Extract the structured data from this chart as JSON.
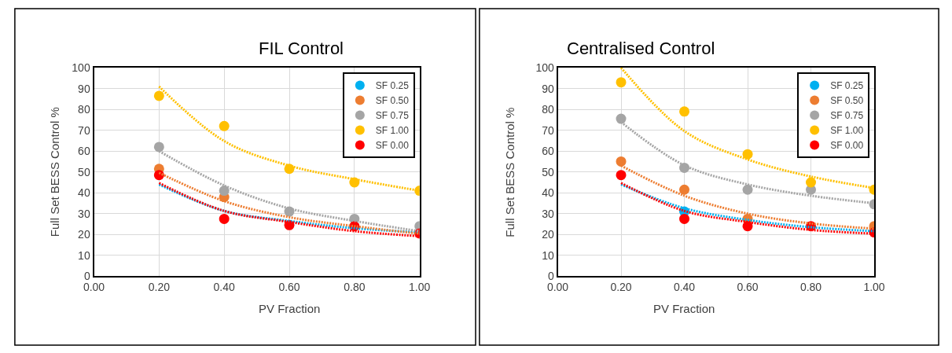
{
  "chart_data": [
    {
      "type": "scatter",
      "title": "FIL Control",
      "xlabel": "PV Fraction",
      "ylabel": "Full Set BESS Control %",
      "x": [
        0.2,
        0.4,
        0.6,
        0.8,
        1.0
      ],
      "xlim": [
        0,
        1
      ],
      "xticks": [
        {
          "value": 0,
          "label": "0.00"
        },
        {
          "value": 0.2,
          "label": "0.20"
        },
        {
          "value": 0.4,
          "label": "0.40"
        },
        {
          "value": 0.6,
          "label": "0.60"
        },
        {
          "value": 0.8,
          "label": "0.80"
        },
        {
          "value": 1,
          "label": "1.00"
        }
      ],
      "ylim": [
        0,
        100
      ],
      "yticks": [
        0,
        10,
        20,
        30,
        40,
        50,
        60,
        70,
        80,
        90,
        100
      ],
      "grid": true,
      "legend": "top right",
      "marker": "circle",
      "series": [
        {
          "name": "SF 0.25",
          "color": "#00b0f0",
          "values": [
            null,
            null,
            null,
            null,
            null
          ]
        },
        {
          "name": "SF 0.50",
          "color": "#ed7d31",
          "values": [
            51.5,
            38,
            null,
            null,
            null
          ]
        },
        {
          "name": "SF 0.75",
          "color": "#a5a5a5",
          "values": [
            62,
            41,
            31,
            27.5,
            24
          ]
        },
        {
          "name": "SF 1.00",
          "color": "#ffc000",
          "values": [
            86.5,
            72,
            51.5,
            45,
            41
          ]
        },
        {
          "name": "SF 0.00",
          "color": "#ff0000",
          "values": [
            48.5,
            27.5,
            24.5,
            24,
            20.5
          ]
        },
        {
          "type": "line",
          "color": "#00b0f0",
          "line_style": "dotted",
          "marker": "none",
          "values": [
            44,
            31.3,
            26.5,
            23,
            21
          ]
        },
        {
          "type": "line",
          "color": "#ed7d31",
          "line_style": "dotted",
          "marker": "none",
          "values": [
            49.6,
            36,
            28.3,
            24,
            20.4
          ]
        },
        {
          "type": "line",
          "color": "#a5a5a5",
          "line_style": "dotted",
          "marker": "none",
          "values": [
            60,
            43.5,
            32.5,
            26.5,
            21.6
          ]
        },
        {
          "type": "line",
          "color": "#ffc000",
          "line_style": "dotted",
          "marker": "none",
          "values": [
            91,
            64.8,
            53,
            46.5,
            41
          ]
        },
        {
          "type": "line",
          "color": "#ff0000",
          "line_style": "dotted",
          "marker": "none",
          "values": [
            44.7,
            31.3,
            26,
            21.6,
            19.2
          ]
        }
      ]
    },
    {
      "type": "scatter",
      "title": "Centralised Control",
      "xlabel": "PV Fraction",
      "ylabel": "Full Set BESS Control %",
      "x": [
        0.2,
        0.4,
        0.6,
        0.8,
        1.0
      ],
      "xlim": [
        0,
        1
      ],
      "xticks": [
        {
          "value": 0,
          "label": "0.00"
        },
        {
          "value": 0.2,
          "label": "0.20"
        },
        {
          "value": 0.4,
          "label": "0.40"
        },
        {
          "value": 0.6,
          "label": "0.60"
        },
        {
          "value": 0.8,
          "label": "0.80"
        },
        {
          "value": 1,
          "label": "1.00"
        }
      ],
      "ylim": [
        0,
        100
      ],
      "yticks": [
        0,
        10,
        20,
        30,
        40,
        50,
        60,
        70,
        80,
        90,
        100
      ],
      "grid": true,
      "legend": "top right",
      "marker": "circle",
      "series": [
        {
          "name": "SF 0.25",
          "color": "#00b0f0",
          "values": [
            null,
            31,
            null,
            null,
            null
          ]
        },
        {
          "name": "SF 0.50",
          "color": "#ed7d31",
          "values": [
            55,
            41.5,
            27.5,
            null,
            24
          ]
        },
        {
          "name": "SF 0.75",
          "color": "#a5a5a5",
          "values": [
            75.5,
            52,
            41.5,
            41.5,
            34.5
          ]
        },
        {
          "name": "SF 1.00",
          "color": "#ffc000",
          "values": [
            93,
            79,
            58.5,
            45,
            41.5
          ]
        },
        {
          "name": "SF 0.00",
          "color": "#ff0000",
          "values": [
            48.5,
            27.5,
            24,
            24,
            21
          ]
        },
        {
          "type": "line",
          "color": "#00b0f0",
          "line_style": "dotted",
          "marker": "none",
          "values": [
            44,
            32.6,
            27,
            23.5,
            21.6
          ]
        },
        {
          "type": "line",
          "color": "#ed7d31",
          "line_style": "dotted",
          "marker": "none",
          "values": [
            53,
            38.6,
            30,
            25.3,
            22.8
          ]
        },
        {
          "type": "line",
          "color": "#a5a5a5",
          "line_style": "dotted",
          "marker": "none",
          "values": [
            73.9,
            53.2,
            44,
            38.6,
            35
          ]
        },
        {
          "type": "line",
          "color": "#ffc000",
          "line_style": "dotted",
          "marker": "none",
          "values": [
            100,
            69.6,
            56,
            47.8,
            42.3
          ]
        },
        {
          "type": "line",
          "color": "#ff0000",
          "line_style": "dotted",
          "marker": "none",
          "values": [
            44.7,
            31.3,
            26,
            22.2,
            20.4
          ]
        }
      ]
    }
  ]
}
